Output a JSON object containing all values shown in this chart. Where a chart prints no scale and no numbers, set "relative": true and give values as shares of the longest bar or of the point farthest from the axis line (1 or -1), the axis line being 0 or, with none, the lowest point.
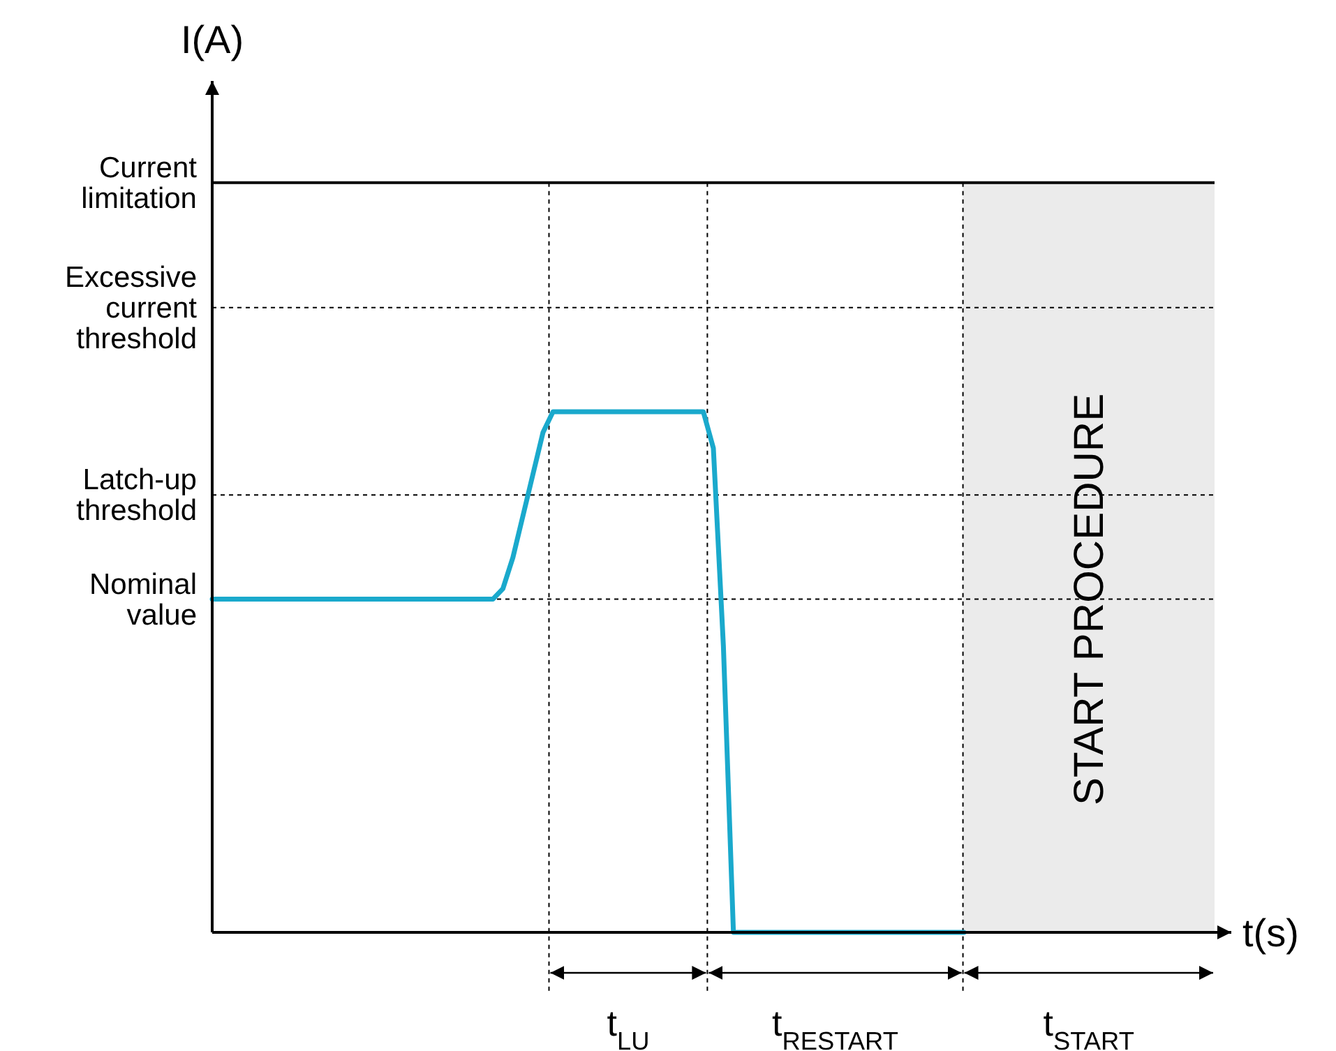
{
  "chart_data": {
    "type": "line",
    "relative": true,
    "xlabel": "t(s)",
    "marker": "none",
    "line_style": "solid",
    "categories": [
      null,
      null,
      null,
      null,
      null,
      null,
      null,
      null,
      null,
      null,
      null,
      null,
      null,
      null,
      null,
      null,
      null,
      null,
      null,
      null,
      null,
      null,
      null,
      null,
      null,
      null,
      null,
      null,
      null,
      null,
      null,
      null,
      null,
      null,
      null,
      null,
      null,
      null,
      null,
      null,
      null,
      null,
      null,
      null,
      null,
      null,
      null,
      null,
      null,
      null,
      null,
      null,
      null,
      null,
      null,
      null,
      null,
      null,
      null,
      null,
      null,
      null,
      null,
      null,
      null,
      null,
      null,
      null,
      null,
      null,
      null,
      null,
      null,
      null,
      null,
      null,
      null,
      null,
      null,
      null,
      null,
      null,
      null,
      null,
      null,
      null,
      null,
      null,
      null,
      null,
      null,
      null,
      null,
      null,
      null,
      null,
      null,
      null,
      null,
      null,
      null
    ],
    "series": [
      {
        "color": "#1aa9cc",
        "values": [
          0.64,
          0.64,
          0.64,
          0.64,
          0.64,
          0.64,
          0.64,
          0.64,
          0.64,
          0.64,
          0.64,
          0.64,
          0.64,
          0.64,
          0.64,
          0.64,
          0.64,
          0.64,
          0.64,
          0.64,
          0.64,
          0.64,
          0.64,
          0.64,
          0.64,
          0.64,
          0.64,
          0.64,
          0.64,
          0.66,
          0.72,
          0.8,
          0.88,
          0.96,
          1,
          1,
          1,
          1,
          1,
          1,
          1,
          1,
          1,
          1,
          1,
          1,
          1,
          1,
          1,
          1,
          0.93,
          0.55,
          0,
          0,
          0,
          0,
          0,
          0,
          0,
          0,
          0,
          0,
          0,
          0,
          0,
          0,
          0,
          0,
          0,
          0,
          0,
          0,
          0,
          0,
          0,
          0,
          null,
          null,
          null,
          null,
          null,
          null,
          null,
          null,
          null,
          null,
          null,
          null,
          null,
          null,
          null,
          null,
          null,
          null,
          null,
          null,
          null,
          null,
          null,
          null,
          null
        ]
      }
    ],
    "ref_lines": [
      {
        "axis": "y",
        "value": 1.44,
        "label": "Current limitation",
        "line_style": "solid",
        "color": "#000000"
      },
      {
        "axis": "y",
        "value": 1.2,
        "label": "Excessive current threshold",
        "line_style": "dotted",
        "color": "#000000"
      },
      {
        "axis": "y",
        "value": 0.84,
        "label": "Latch-up threshold",
        "line_style": "dotted",
        "color": "#000000"
      },
      {
        "axis": "y",
        "value": 0.64,
        "label": "Nominal value",
        "line_style": "dotted",
        "color": "#000000"
      }
    ],
    "annotations": [
      "START PROCEDURE",
      "t$_{LU}$",
      "t$_{RESTART}$",
      "t$_{START}$",
      "I(A)"
    ]
  }
}
